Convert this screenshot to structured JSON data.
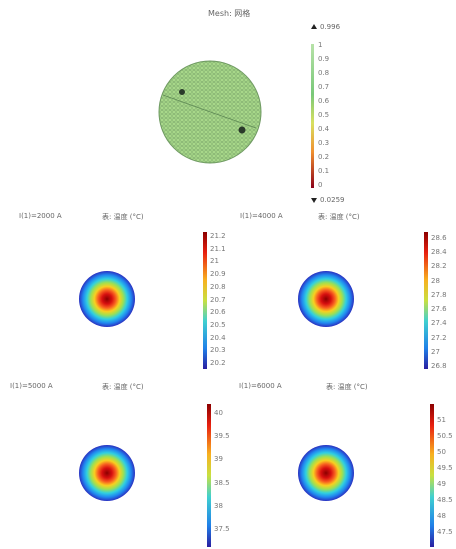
{
  "mesh_panel": {
    "title": "Mesh: 网格",
    "colorbar": {
      "max_label": "0.996",
      "min_label": "0.0259",
      "ticks": [
        "1",
        "0.9",
        "0.8",
        "0.7",
        "0.6",
        "0.5",
        "0.4",
        "0.3",
        "0.2",
        "0.1",
        "0"
      ]
    }
  },
  "temperature_panels": [
    {
      "param_label": "I(1)=2000 A",
      "surface_label": "表: 温度 (°C)",
      "ticks": [
        "21.2",
        "21.1",
        "21",
        "20.9",
        "20.8",
        "20.7",
        "20.6",
        "20.5",
        "20.4",
        "20.3",
        "20.2"
      ]
    },
    {
      "param_label": "I(1)=4000 A",
      "surface_label": "表: 温度 (°C)",
      "ticks": [
        "28.6",
        "28.4",
        "28.2",
        "28",
        "27.8",
        "27.6",
        "27.4",
        "27.2",
        "27",
        "26.8"
      ]
    },
    {
      "param_label": "I(1)=5000 A",
      "surface_label": "表: 温度 (°C)",
      "ticks": [
        "40",
        "39.5",
        "39",
        "38.5",
        "38",
        "37.5"
      ]
    },
    {
      "param_label": "I(1)=6000 A",
      "surface_label": "表: 温度 (°C)",
      "ticks": [
        "51",
        "50.5",
        "50",
        "49.5",
        "49",
        "48.5",
        "48",
        "47.5"
      ]
    }
  ],
  "colors": {
    "mesh_fill": "#a8d88a",
    "mesh_line": "#6f9a62",
    "hot": "#8b0000",
    "cold": "#2a3cc8"
  }
}
